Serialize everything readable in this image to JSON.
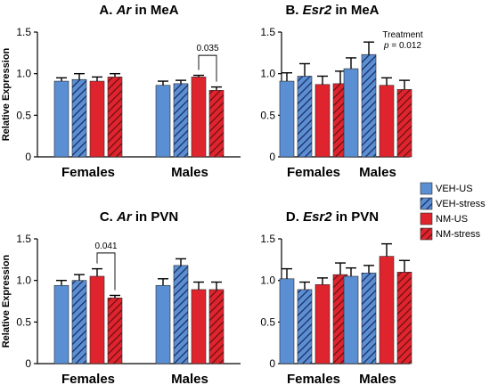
{
  "legend": [
    {
      "label": "VEH-US",
      "color": "#5b8fd3",
      "hatched": false
    },
    {
      "label": "VEH-stress",
      "color": "#5b8fd3",
      "hatched": true
    },
    {
      "label": "NM-US",
      "color": "#e0242d",
      "hatched": false
    },
    {
      "label": "NM-stress",
      "color": "#e0242d",
      "hatched": true
    }
  ],
  "chart_data": [
    {
      "type": "bar",
      "title_prefix": "A. ",
      "title_gene": "Ar",
      "title_suffix": " in MeA",
      "ylabel": "Relative Expression",
      "ylim": [
        0,
        1.5
      ],
      "yticks": [
        "0",
        "0.5",
        "1.0",
        "1.5"
      ],
      "groups": [
        "Females",
        "Males"
      ],
      "series": [
        {
          "name": "VEH-US",
          "values": [
            0.91,
            0.86
          ],
          "errors": [
            0.04,
            0.05
          ]
        },
        {
          "name": "VEH-stress",
          "values": [
            0.93,
            0.88
          ],
          "errors": [
            0.07,
            0.04
          ]
        },
        {
          "name": "NM-US",
          "values": [
            0.91,
            0.96
          ],
          "errors": [
            0.05,
            0.02
          ]
        },
        {
          "name": "NM-stress",
          "values": [
            0.96,
            0.8
          ],
          "errors": [
            0.04,
            0.04
          ]
        }
      ],
      "annotations": [
        {
          "text": "0.035",
          "group": 1,
          "from_series": 2,
          "to_series": 3,
          "level": 1.22
        }
      ]
    },
    {
      "type": "bar",
      "title_prefix": "B. ",
      "title_gene": "Esr2",
      "title_suffix": " in MeA",
      "ylabel": "",
      "ylim": [
        0,
        1.5
      ],
      "yticks": [
        "0",
        "0.5",
        "1.0",
        "1.5"
      ],
      "groups": [
        "Females",
        "Males"
      ],
      "series": [
        {
          "name": "VEH-US",
          "values": [
            0.91,
            1.06
          ],
          "errors": [
            0.1,
            0.13
          ]
        },
        {
          "name": "VEH-stress",
          "values": [
            0.97,
            1.23
          ],
          "errors": [
            0.15,
            0.15
          ]
        },
        {
          "name": "NM-US",
          "values": [
            0.87,
            0.86
          ],
          "errors": [
            0.1,
            0.09
          ]
        },
        {
          "name": "NM-stress",
          "values": [
            0.88,
            0.81
          ],
          "errors": [
            0.15,
            0.11
          ]
        }
      ],
      "note_lines": [
        "Treatment",
        "p = 0.012"
      ]
    },
    {
      "type": "bar",
      "title_prefix": "C. ",
      "title_gene": "Ar",
      "title_suffix": " in PVN",
      "ylabel": "Relative Expression",
      "ylim": [
        0,
        1.5
      ],
      "yticks": [
        "0",
        "0.5",
        "1.0",
        "1.5"
      ],
      "groups": [
        "Females",
        "Males"
      ],
      "series": [
        {
          "name": "VEH-US",
          "values": [
            0.94,
            0.94
          ],
          "errors": [
            0.06,
            0.08
          ]
        },
        {
          "name": "VEH-stress",
          "values": [
            1.0,
            1.18
          ],
          "errors": [
            0.07,
            0.08
          ]
        },
        {
          "name": "NM-US",
          "values": [
            1.05,
            0.89
          ],
          "errors": [
            0.09,
            0.09
          ]
        },
        {
          "name": "NM-stress",
          "values": [
            0.79,
            0.89
          ],
          "errors": [
            0.03,
            0.09
          ]
        }
      ],
      "annotations": [
        {
          "text": "0.041",
          "group": 0,
          "from_series": 2,
          "to_series": 3,
          "level": 1.33
        }
      ]
    },
    {
      "type": "bar",
      "title_prefix": "D. ",
      "title_gene": "Esr2",
      "title_suffix": " in PVN",
      "ylabel": "",
      "ylim": [
        0,
        1.5
      ],
      "yticks": [
        "0",
        "0.5",
        "1.0",
        "1.5"
      ],
      "groups": [
        "Females",
        "Males"
      ],
      "series": [
        {
          "name": "VEH-US",
          "values": [
            1.02,
            1.05
          ],
          "errors": [
            0.12,
            0.1
          ]
        },
        {
          "name": "VEH-stress",
          "values": [
            0.89,
            1.09
          ],
          "errors": [
            0.09,
            0.09
          ]
        },
        {
          "name": "NM-US",
          "values": [
            0.95,
            1.29
          ],
          "errors": [
            0.08,
            0.15
          ]
        },
        {
          "name": "NM-stress",
          "values": [
            1.07,
            1.1
          ],
          "errors": [
            0.14,
            0.14
          ]
        }
      ]
    }
  ]
}
